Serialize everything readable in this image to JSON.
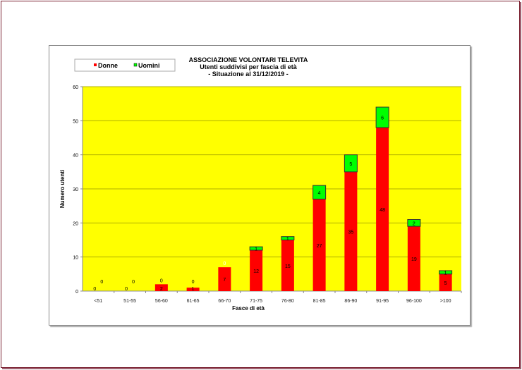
{
  "chart_data": {
    "type": "bar",
    "stacked": true,
    "title": "ASSOCIAZIONE VOLONTARI TELEVITA",
    "subtitle": "Utenti suddivisi per fascia di età",
    "subtitle2": "- Situazione al 31/12/2019 -",
    "xlabel": "Fasce di età",
    "ylabel": "Numero utenti",
    "ylim": [
      0,
      60
    ],
    "yticks": [
      0,
      10,
      20,
      30,
      40,
      50,
      60
    ],
    "grid": true,
    "legend_position": "top-left",
    "categories": [
      "<51",
      "51-55",
      "56-60",
      "61-65",
      "66-70",
      "71-75",
      "76-80",
      "81-85",
      "86-90",
      "91-95",
      "96-100",
      ">100"
    ],
    "series": [
      {
        "name": "Donne",
        "color": "#ff0000",
        "values": [
          0,
          0,
          2,
          1,
          7,
          12,
          15,
          27,
          35,
          48,
          19,
          5
        ]
      },
      {
        "name": "Uomini",
        "color": "#00ff00",
        "values": [
          0,
          0,
          0,
          0,
          0,
          1,
          1,
          4,
          5,
          6,
          2,
          1
        ]
      }
    ],
    "plot_background": "#ffff00"
  }
}
